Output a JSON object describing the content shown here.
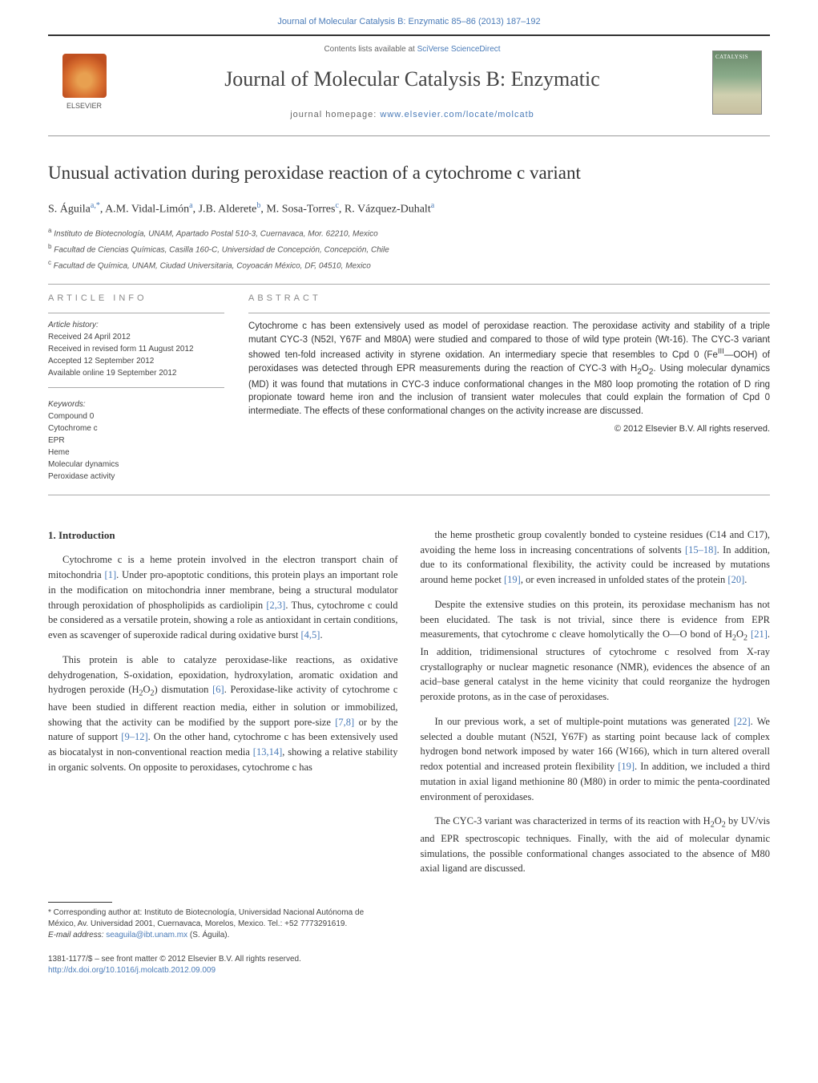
{
  "header": {
    "topLink": "Journal of Molecular Catalysis B: Enzymatic 85–86 (2013) 187–192",
    "contentsPrefix": "Contents lists available at ",
    "contentsLink": "SciVerse ScienceDirect",
    "journalTitle": "Journal of Molecular Catalysis B: Enzymatic",
    "homepageLabel": "journal homepage: ",
    "homepageUrl": "www.elsevier.com/locate/molcatb",
    "elsevierName": "ELSEVIER",
    "coverText": "CATALYSIS",
    "linkColor": "#4a7bb8"
  },
  "article": {
    "title": "Unusual activation during peroxidase reaction of a cytochrome c variant",
    "authorsHtml": "S. Águila<sup>a,*</sup>, A.M. Vidal-Limón<sup>a</sup>, J.B. Alderete<sup>b</sup>, M. Sosa-Torres<sup>c</sup>, R. Vázquez-Duhalt<sup>a</sup>",
    "affiliations": [
      {
        "sup": "a",
        "text": "Instituto de Biotecnología, UNAM, Apartado Postal 510-3, Cuernavaca, Mor. 62210, Mexico"
      },
      {
        "sup": "b",
        "text": "Facultad de Ciencias Químicas, Casilla 160-C, Universidad de Concepción, Concepción, Chile"
      },
      {
        "sup": "c",
        "text": "Facultad de Química, UNAM, Ciudad Universitaria, Coyoacán México, DF, 04510, Mexico"
      }
    ]
  },
  "info": {
    "heading": "ARTICLE INFO",
    "historyLabel": "Article history:",
    "history": [
      "Received 24 April 2012",
      "Received in revised form 11 August 2012",
      "Accepted 12 September 2012",
      "Available online 19 September 2012"
    ],
    "keywordsLabel": "Keywords:",
    "keywords": [
      "Compound 0",
      "Cytochrome c",
      "EPR",
      "Heme",
      "Molecular dynamics",
      "Peroxidase activity"
    ]
  },
  "abstract": {
    "heading": "ABSTRACT",
    "text": "Cytochrome c has been extensively used as model of peroxidase reaction. The peroxidase activity and stability of a triple mutant CYC-3 (N52I, Y67F and M80A) were studied and compared to those of wild type protein (Wt-16). The CYC-3 variant showed ten-fold increased activity in styrene oxidation. An intermediary specie that resembles to Cpd 0 (FeIII—OOH) of peroxidases was detected through EPR measurements during the reaction of CYC-3 with H2O2. Using molecular dynamics (MD) it was found that mutations in CYC-3 induce conformational changes in the M80 loop promoting the rotation of D ring propionate toward heme iron and the inclusion of transient water molecules that could explain the formation of Cpd 0 intermediate. The effects of these conformational changes on the activity increase are discussed.",
    "copyright": "© 2012 Elsevier B.V. All rights reserved."
  },
  "body": {
    "introHeading": "1. Introduction",
    "paragraphs": [
      "Cytochrome c is a heme protein involved in the electron transport chain of mitochondria [1]. Under pro-apoptotic conditions, this protein plays an important role in the modification on mitochondria inner membrane, being a structural modulator through peroxidation of phospholipids as cardiolipin [2,3]. Thus, cytochrome c could be considered as a versatile protein, showing a role as antioxidant in certain conditions, even as scavenger of superoxide radical during oxidative burst [4,5].",
      "This protein is able to catalyze peroxidase-like reactions, as oxidative dehydrogenation, S-oxidation, epoxidation, hydroxylation, aromatic oxidation and hydrogen peroxide (H2O2) dismutation [6]. Peroxidase-like activity of cytochrome c have been studied in different reaction media, either in solution or immobilized, showing that the activity can be modified by the support pore-size [7,8] or by the nature of support [9–12]. On the other hand, cytochrome c has been extensively used as biocatalyst in non-conventional reaction media [13,14], showing a relative stability in organic solvents. On opposite to peroxidases, cytochrome c has",
      "the heme prosthetic group covalently bonded to cysteine residues (C14 and C17), avoiding the heme loss in increasing concentrations of solvents [15–18]. In addition, due to its conformational flexibility, the activity could be increased by mutations around heme pocket [19], or even increased in unfolded states of the protein [20].",
      "Despite the extensive studies on this protein, its peroxidase mechanism has not been elucidated. The task is not trivial, since there is evidence from EPR measurements, that cytochrome c cleave homolytically the O—O bond of H2O2 [21]. In addition, tridimensional structures of cytochrome c resolved from X-ray crystallography or nuclear magnetic resonance (NMR), evidences the absence of an acid–base general catalyst in the heme vicinity that could reorganize the hydrogen peroxide protons, as in the case of peroxidases.",
      "In our previous work, a set of multiple-point mutations was generated [22]. We selected a double mutant (N52I, Y67F) as starting point because lack of complex hydrogen bond network imposed by water 166 (W166), which in turn altered overall redox potential and increased protein flexibility [19]. In addition, we included a third mutation in axial ligand methionine 80 (M80) in order to mimic the penta-coordinated environment of peroxidases.",
      "The CYC-3 variant was characterized in terms of its reaction with H2O2 by UV/vis and EPR spectroscopic techniques. Finally, with the aid of molecular dynamic simulations, the possible conformational changes associated to the absence of M80 axial ligand are discussed."
    ],
    "columnSplitAfter": 1
  },
  "footer": {
    "corrLabel": "* Corresponding author at: Instituto de Biotecnología, Universidad Nacional Autónoma de México, Av. Universidad 2001, Cuernavaca, Morelos, Mexico. Tel.: +52 7773291619.",
    "emailLabel": "E-mail address: ",
    "email": "seaguila@ibt.unam.mx",
    "emailSuffix": " (S. Águila).",
    "issn": "1381-1177/$ – see front matter © 2012 Elsevier B.V. All rights reserved.",
    "doi": "http://dx.doi.org/10.1016/j.molcatb.2012.09.009"
  },
  "style": {
    "bodyWidth": 1021,
    "linkColor": "#4a7bb8",
    "textColor": "#333333",
    "mutedColor": "#888888",
    "backgroundColor": "#ffffff",
    "dividerColor": "#aaaaaa",
    "fontBody": "Georgia, Times New Roman, serif",
    "fontUI": "Arial, sans-serif",
    "titleFontSize": 23,
    "journalTitleFontSize": 26,
    "bodyFontSize": 12.5,
    "abstractFontSize": 11.5
  }
}
